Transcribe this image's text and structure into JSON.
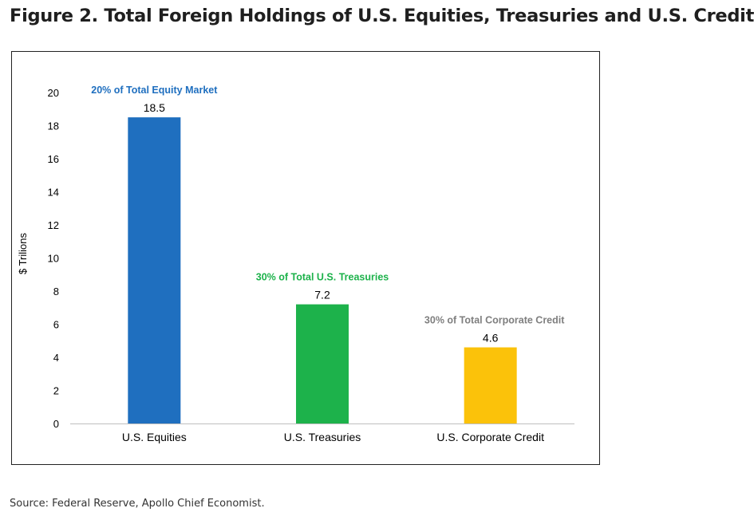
{
  "figure_title": "Figure 2. Total Foreign Holdings of U.S. Equities, Treasuries and U.S. Credit",
  "source": "Source: Federal Reserve, Apollo Chief Economist.",
  "colors": {
    "equities": "#1f6fbf",
    "treasuries": "#1db24b",
    "credit": "#fbc20a",
    "credit_note": "#7f7f7f"
  },
  "chart_data": {
    "type": "bar",
    "title": "",
    "xlabel": "",
    "ylabel": "$ Trilions",
    "ylim": [
      0,
      20
    ],
    "yticks": [
      "0",
      "2",
      "4",
      "6",
      "8",
      "10",
      "12",
      "14",
      "16",
      "18",
      "20"
    ],
    "grid": false,
    "legend": "none",
    "categories": [
      "U.S. Equities",
      "U.S. Treasuries",
      "U.S. Corporate Credit"
    ],
    "values": [
      18.5,
      7.2,
      4.6
    ],
    "data_labels": [
      "18.5",
      "7.2",
      "4.6"
    ],
    "annotations": [
      "20% of Total Equity Market",
      "30% of Total U.S. Treasuries",
      "30% of Total Corporate Credit"
    ],
    "bar_colors": [
      "#1f6fbf",
      "#1db24b",
      "#fbc20a"
    ],
    "annotation_colors": [
      "#1f6fbf",
      "#1db24b",
      "#7f7f7f"
    ]
  }
}
